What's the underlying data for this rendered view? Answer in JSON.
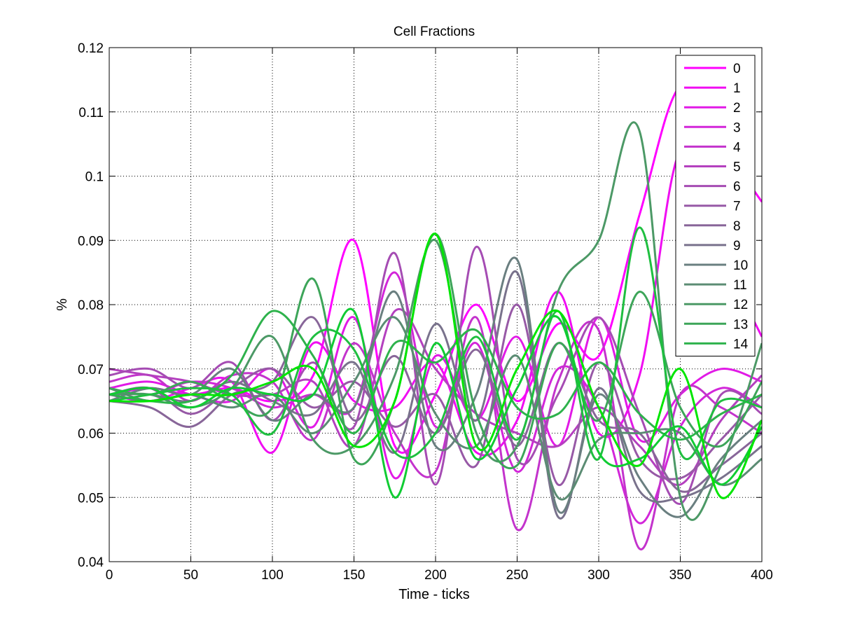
{
  "chart_data": {
    "type": "line",
    "title": "Cell Fractions",
    "xlabel": "Time - ticks",
    "ylabel": "%",
    "xlim": [
      0,
      400
    ],
    "ylim": [
      0.04,
      0.12
    ],
    "xticks": [
      "0",
      "50",
      "100",
      "150",
      "200",
      "250",
      "300",
      "350",
      "400"
    ],
    "yticks": [
      "0.04",
      "0.05",
      "0.06",
      "0.07",
      "0.08",
      "0.09",
      "0.1",
      "0.11",
      "0.12"
    ],
    "grid": true,
    "legend_position": "top-right",
    "x": [
      0,
      25,
      50,
      75,
      100,
      125,
      150,
      175,
      200,
      225,
      250,
      275,
      300,
      325,
      350,
      375,
      400
    ],
    "series": [
      {
        "name": "0",
        "color": "#ff00ff",
        "values": [
          0.066,
          0.067,
          0.066,
          0.067,
          0.065,
          0.069,
          0.09,
          0.058,
          0.066,
          0.08,
          0.065,
          0.077,
          0.072,
          0.094,
          0.114,
          0.105,
          0.096
        ]
      },
      {
        "name": "1",
        "color": "#f00df2",
        "values": [
          0.066,
          0.065,
          0.067,
          0.068,
          0.057,
          0.074,
          0.065,
          0.064,
          0.071,
          0.057,
          0.062,
          0.082,
          0.06,
          0.069,
          0.104,
          0.088,
          0.075
        ]
      },
      {
        "name": "2",
        "color": "#e11ae6",
        "values": [
          0.067,
          0.068,
          0.066,
          0.065,
          0.07,
          0.061,
          0.078,
          0.053,
          0.072,
          0.062,
          0.075,
          0.058,
          0.078,
          0.059,
          0.066,
          0.07,
          0.068
        ]
      },
      {
        "name": "3",
        "color": "#d226d9",
        "values": [
          0.067,
          0.066,
          0.068,
          0.067,
          0.064,
          0.066,
          0.064,
          0.085,
          0.061,
          0.074,
          0.054,
          0.07,
          0.064,
          0.046,
          0.061,
          0.067,
          0.064
        ]
      },
      {
        "name": "4",
        "color": "#c333cc",
        "values": [
          0.068,
          0.069,
          0.065,
          0.069,
          0.068,
          0.059,
          0.074,
          0.06,
          0.054,
          0.078,
          0.045,
          0.068,
          0.076,
          0.042,
          0.066,
          0.064,
          0.06
        ]
      },
      {
        "name": "5",
        "color": "#b440bf",
        "values": [
          0.07,
          0.069,
          0.068,
          0.066,
          0.066,
          0.068,
          0.058,
          0.079,
          0.07,
          0.063,
          0.06,
          0.058,
          0.064,
          0.058,
          0.052,
          0.062,
          0.069
        ]
      },
      {
        "name": "6",
        "color": "#a54cb3",
        "values": [
          0.069,
          0.07,
          0.067,
          0.071,
          0.062,
          0.071,
          0.061,
          0.088,
          0.052,
          0.089,
          0.056,
          0.066,
          0.078,
          0.063,
          0.049,
          0.066,
          0.063
        ]
      },
      {
        "name": "7",
        "color": "#9759a6",
        "values": [
          0.066,
          0.067,
          0.063,
          0.067,
          0.07,
          0.064,
          0.068,
          0.061,
          0.066,
          0.055,
          0.08,
          0.052,
          0.071,
          0.056,
          0.053,
          0.059,
          0.066
        ]
      },
      {
        "name": "8",
        "color": "#886699",
        "values": [
          0.065,
          0.064,
          0.061,
          0.066,
          0.068,
          0.078,
          0.062,
          0.072,
          0.06,
          0.073,
          0.058,
          0.074,
          0.062,
          0.06,
          0.051,
          0.055,
          0.06
        ]
      },
      {
        "name": "9",
        "color": "#79728c",
        "values": [
          0.066,
          0.066,
          0.065,
          0.068,
          0.065,
          0.063,
          0.071,
          0.057,
          0.077,
          0.062,
          0.085,
          0.047,
          0.067,
          0.051,
          0.05,
          0.053,
          0.058
        ]
      },
      {
        "name": "10",
        "color": "#6a7f80",
        "values": [
          0.065,
          0.067,
          0.066,
          0.07,
          0.062,
          0.066,
          0.064,
          0.082,
          0.058,
          0.066,
          0.087,
          0.048,
          0.066,
          0.053,
          0.047,
          0.056,
          0.062
        ]
      },
      {
        "name": "11",
        "color": "#5b8c73",
        "values": [
          0.067,
          0.065,
          0.066,
          0.064,
          0.066,
          0.06,
          0.068,
          0.078,
          0.063,
          0.058,
          0.072,
          0.05,
          0.059,
          0.06,
          0.06,
          0.052,
          0.056
        ]
      },
      {
        "name": "12",
        "color": "#4c9966",
        "values": [
          0.066,
          0.066,
          0.064,
          0.067,
          0.075,
          0.059,
          0.058,
          0.069,
          0.09,
          0.06,
          0.058,
          0.082,
          0.09,
          0.107,
          0.05,
          0.055,
          0.074
        ]
      },
      {
        "name": "13",
        "color": "#3da559",
        "values": [
          0.067,
          0.066,
          0.068,
          0.065,
          0.064,
          0.084,
          0.056,
          0.065,
          0.091,
          0.063,
          0.055,
          0.074,
          0.062,
          0.082,
          0.064,
          0.058,
          0.068
        ]
      },
      {
        "name": "14",
        "color": "#2eb24c",
        "values": [
          0.066,
          0.065,
          0.065,
          0.069,
          0.079,
          0.072,
          0.06,
          0.074,
          0.071,
          0.076,
          0.064,
          0.063,
          0.071,
          0.063,
          0.059,
          0.063,
          0.066
        ]
      },
      {
        "name": "",
        "color": "#1fbf40",
        "values": [
          0.065,
          0.066,
          0.067,
          0.066,
          0.06,
          0.075,
          0.073,
          0.057,
          0.06,
          0.075,
          0.059,
          0.079,
          0.056,
          0.092,
          0.057,
          0.065,
          0.064
        ]
      },
      {
        "name": "",
        "color": "#10cc33",
        "values": [
          0.066,
          0.067,
          0.064,
          0.067,
          0.066,
          0.066,
          0.079,
          0.05,
          0.074,
          0.056,
          0.067,
          0.078,
          0.057,
          0.056,
          0.061,
          0.052,
          0.061
        ]
      },
      {
        "name": "",
        "color": "#00e600",
        "values": [
          0.065,
          0.065,
          0.066,
          0.066,
          0.068,
          0.07,
          0.058,
          0.065,
          0.091,
          0.058,
          0.07,
          0.079,
          0.064,
          0.055,
          0.07,
          0.05,
          0.062
        ]
      }
    ]
  }
}
